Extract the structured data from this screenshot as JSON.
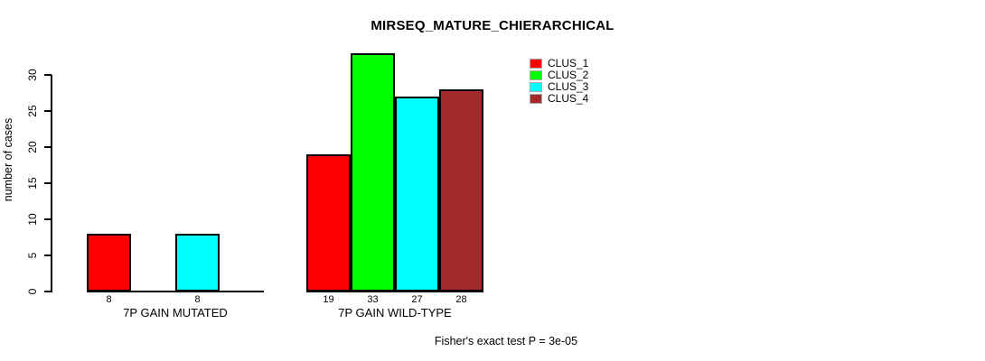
{
  "chart_data": {
    "type": "bar",
    "title": "MIRSEQ_MATURE_CHIERARCHICAL",
    "ylabel": "number of cases",
    "xlabel": "",
    "ylim": [
      0,
      30
    ],
    "yticks": [
      0,
      5,
      10,
      15,
      20,
      25,
      30
    ],
    "grid": false,
    "legend_position": "top-right",
    "series": [
      {
        "name": "CLUS_1",
        "color": "#FF0000"
      },
      {
        "name": "CLUS_2",
        "color": "#00FF00"
      },
      {
        "name": "CLUS_3",
        "color": "#00FFFF"
      },
      {
        "name": "CLUS_4",
        "color": "#A52A2A"
      }
    ],
    "groups": [
      {
        "label": "7P GAIN MUTATED",
        "bars": [
          {
            "series": "CLUS_1",
            "slot": 0,
            "value": 8
          },
          {
            "series": "CLUS_3",
            "slot": 2,
            "value": 8
          }
        ]
      },
      {
        "label": "7P GAIN WILD-TYPE",
        "bars": [
          {
            "series": "CLUS_1",
            "slot": 0,
            "value": 19
          },
          {
            "series": "CLUS_2",
            "slot": 1,
            "value": 33
          },
          {
            "series": "CLUS_3",
            "slot": 2,
            "value": 27
          },
          {
            "series": "CLUS_4",
            "slot": 3,
            "value": 28
          }
        ]
      }
    ],
    "footnote": "Fisher's exact test P = 3e-05"
  },
  "colors": {
    "background": "#FFFFFF",
    "axis": "#000000",
    "text": "#000000",
    "bar_border": "#000000"
  }
}
